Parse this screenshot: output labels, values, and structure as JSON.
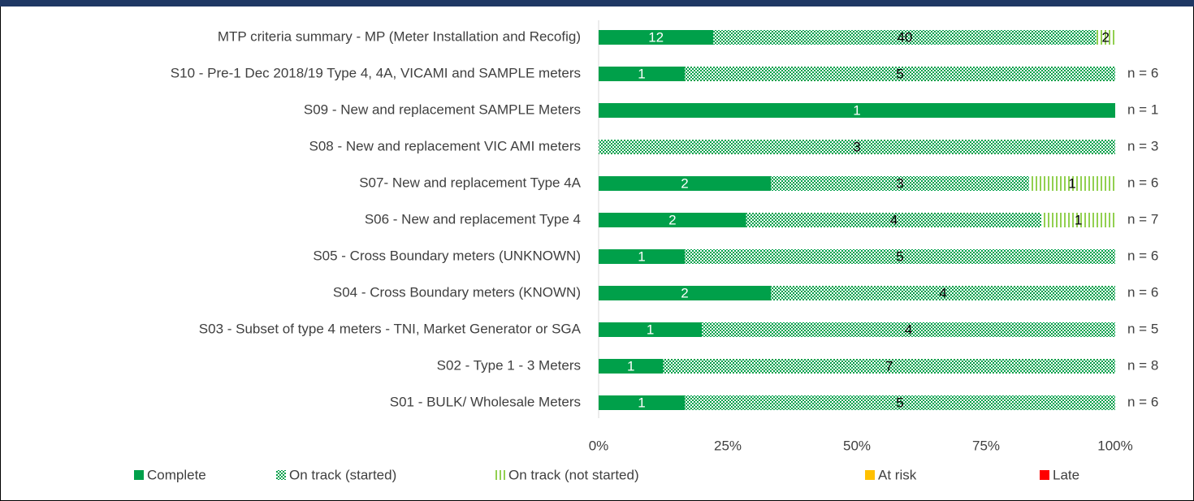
{
  "chart_data": {
    "type": "bar",
    "orientation": "horizontal",
    "stacked": "percent",
    "categories": [
      "MTP criteria summary - MP (Meter Installation and Recofig)",
      "S10 - Pre-1 Dec 2018/19 Type 4, 4A, VICAMI and SAMPLE meters",
      "S09 - New and replacement SAMPLE Meters",
      "S08 - New and replacement VIC AMI meters",
      "S07- New and replacement Type 4A",
      "S06 - New and replacement Type 4",
      "S05 - Cross Boundary meters (UNKNOWN)",
      "S04 - Cross Boundary meters (KNOWN)",
      "S03 - Subset of type 4 meters - TNI, Market Generator or SGA",
      "S02 - Type 1 - 3 Meters",
      "S01 - BULK/ Wholesale Meters"
    ],
    "series": [
      {
        "name": "Complete",
        "color": "#00a04a",
        "fill": "solid",
        "values": [
          12,
          1,
          1,
          0,
          2,
          2,
          1,
          2,
          1,
          1,
          1
        ]
      },
      {
        "name": "On track (started)",
        "color": "#00a04a",
        "fill": "dots",
        "values": [
          40,
          5,
          0,
          3,
          3,
          4,
          5,
          4,
          4,
          7,
          5
        ]
      },
      {
        "name": "On track (not started)",
        "color": "#92d050",
        "fill": "stripes",
        "values": [
          2,
          0,
          0,
          0,
          1,
          1,
          0,
          0,
          0,
          0,
          0
        ]
      },
      {
        "name": "At risk",
        "color": "#ffc000",
        "fill": "solid",
        "values": [
          0,
          0,
          0,
          0,
          0,
          0,
          0,
          0,
          0,
          0,
          0
        ]
      },
      {
        "name": "Late",
        "color": "#ff0000",
        "fill": "solid",
        "values": [
          0,
          0,
          0,
          0,
          0,
          0,
          0,
          0,
          0,
          0,
          0
        ]
      }
    ],
    "annotations": [
      null,
      "n = 6",
      "n = 1",
      "n = 3",
      "n = 6",
      "n = 7",
      "n = 6",
      "n = 6",
      "n = 5",
      "n = 8",
      "n = 6"
    ],
    "xlim": [
      0,
      100
    ],
    "xticks": [
      {
        "value": 0,
        "label": "0%"
      },
      {
        "value": 25,
        "label": "25%"
      },
      {
        "value": 50,
        "label": "50%"
      },
      {
        "value": 75,
        "label": "75%"
      },
      {
        "value": 100,
        "label": "100%"
      }
    ],
    "legend": "bottom"
  }
}
